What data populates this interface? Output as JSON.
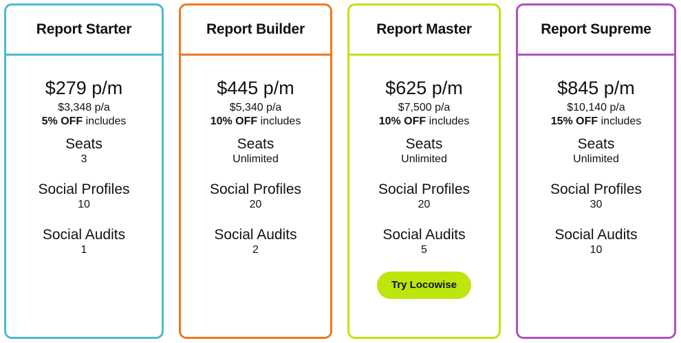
{
  "plans": [
    {
      "name": "Report Starter",
      "monthly": "$279 p/m",
      "annual": "$3,348 p/a",
      "discount": "5% OFF",
      "includes": "includes",
      "color": "#4db8d4",
      "features": [
        {
          "label": "Seats",
          "value": "3"
        },
        {
          "label": "Social Profiles",
          "value": "10"
        },
        {
          "label": "Social Audits",
          "value": "1"
        }
      ]
    },
    {
      "name": "Report Builder",
      "monthly": "$445 p/m",
      "annual": "$5,340 p/a",
      "discount": "10% OFF",
      "includes": "includes",
      "color": "#f07820",
      "features": [
        {
          "label": "Seats",
          "value": "Unlimited"
        },
        {
          "label": "Social Profiles",
          "value": "20"
        },
        {
          "label": "Social Audits",
          "value": "2"
        }
      ]
    },
    {
      "name": "Report Master",
      "monthly": "$625 p/m",
      "annual": "$7,500 p/a",
      "discount": "10% OFF",
      "includes": "includes",
      "color": "#bde60c",
      "features": [
        {
          "label": "Seats",
          "value": "Unlimited"
        },
        {
          "label": "Social Profiles",
          "value": "20"
        },
        {
          "label": "Social Audits",
          "value": "5"
        }
      ],
      "cta": "Try Locowise"
    },
    {
      "name": "Report Supreme",
      "monthly": "$845 p/m",
      "annual": "$10,140 p/a",
      "discount": "15% OFF",
      "includes": "includes",
      "color": "#b050c0",
      "features": [
        {
          "label": "Seats",
          "value": "Unlimited"
        },
        {
          "label": "Social Profiles",
          "value": "30"
        },
        {
          "label": "Social Audits",
          "value": "10"
        }
      ]
    }
  ]
}
